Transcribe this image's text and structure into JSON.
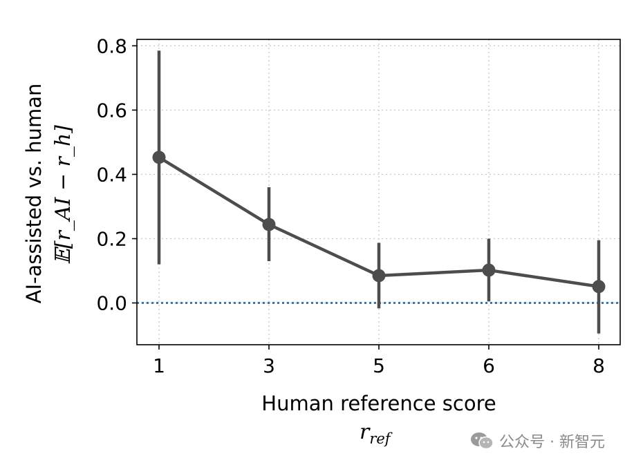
{
  "chart_data": {
    "type": "line",
    "categories": [
      "1",
      "3",
      "5",
      "6",
      "8"
    ],
    "series": [
      {
        "values": [
          0.453,
          0.244,
          0.085,
          0.102,
          0.051
        ],
        "err_low": [
          0.12,
          0.13,
          -0.017,
          0.005,
          -0.095
        ],
        "err_high": [
          0.785,
          0.36,
          0.187,
          0.2,
          0.195
        ],
        "color": "#4d4d4d"
      }
    ],
    "reference_line": {
      "y": 0.0,
      "style": "dotted",
      "color": "#3a76a8"
    },
    "ylim": [
      -0.13,
      0.82
    ],
    "yticks": [
      0.0,
      0.2,
      0.4,
      0.6,
      0.8
    ],
    "ytick_labels": [
      "0.0",
      "0.2",
      "0.4",
      "0.6",
      "0.8"
    ],
    "grid": true,
    "xlabel": "Human reference score",
    "xlabel_math": "r",
    "xlabel_math_sub": "ref",
    "ylabel": "AI-assisted vs. human",
    "ylabel_math": "𝔼[r_AI − r_h]"
  },
  "watermark": {
    "text": "公众号 · 新智元",
    "icon": "wechat-icon"
  }
}
